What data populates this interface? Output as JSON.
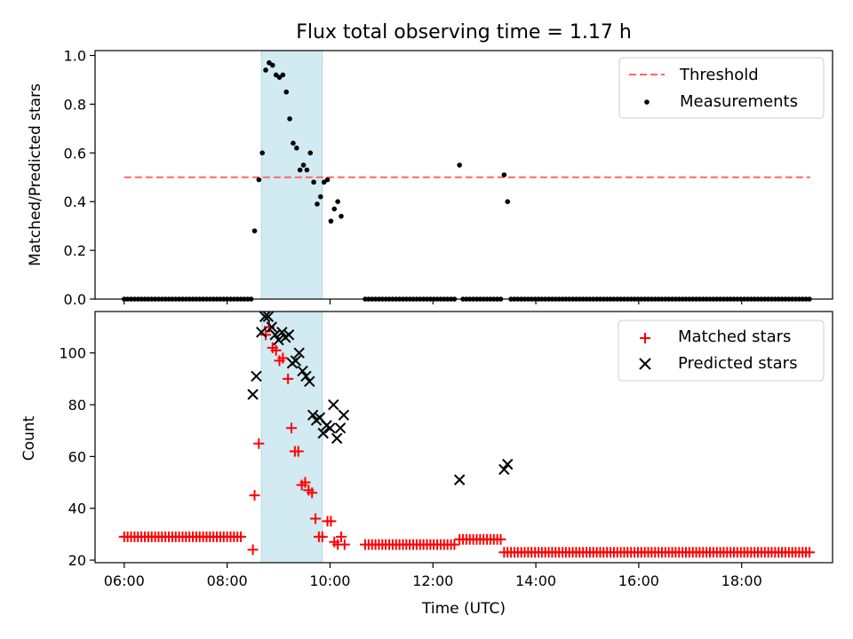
{
  "figure": {
    "title": "Flux total observing time = 1.17 h",
    "xlabel": "Time (UTC)"
  },
  "chart_data": [
    {
      "type": "scatter",
      "ylabel": "Matched/Predicted stars",
      "xlim": [
        "05:26",
        "19:46"
      ],
      "ylim": [
        0,
        1.02
      ],
      "yticks": [
        "0.0",
        "0.2",
        "0.4",
        "0.6",
        "0.8",
        "1.0"
      ],
      "xticks": [
        "06:00",
        "08:00",
        "10:00",
        "12:00",
        "14:00",
        "16:00",
        "18:00"
      ],
      "grid": false,
      "legend_position": "top-right",
      "highlight_span": [
        "08:40",
        "09:51"
      ],
      "highlight_color": "#add8e6",
      "threshold": {
        "name": "Threshold",
        "value": 0.5,
        "x_range": [
          "06:00",
          "19:20"
        ],
        "color": "#ff6666",
        "style": "dashed"
      },
      "series": [
        {
          "name": "Measurements",
          "color": "#000000",
          "marker": "dot",
          "points": [
            [
              "08:32",
              0.28
            ],
            [
              "08:37",
              0.49
            ],
            [
              "08:41",
              0.6
            ],
            [
              "08:45",
              0.94
            ],
            [
              "08:49",
              0.97
            ],
            [
              "08:53",
              0.96
            ],
            [
              "08:57",
              0.92
            ],
            [
              "09:01",
              0.91
            ],
            [
              "09:05",
              0.92
            ],
            [
              "09:09",
              0.85
            ],
            [
              "09:13",
              0.74
            ],
            [
              "09:17",
              0.64
            ],
            [
              "09:21",
              0.62
            ],
            [
              "09:25",
              0.53
            ],
            [
              "09:29",
              0.55
            ],
            [
              "09:33",
              0.53
            ],
            [
              "09:37",
              0.6
            ],
            [
              "09:41",
              0.48
            ],
            [
              "09:45",
              0.39
            ],
            [
              "09:49",
              0.42
            ],
            [
              "09:53",
              0.48
            ],
            [
              "09:57",
              0.49
            ],
            [
              "10:01",
              0.32
            ],
            [
              "10:05",
              0.37
            ],
            [
              "10:09",
              0.4
            ],
            [
              "10:13",
              0.34
            ],
            [
              "12:31",
              0.55
            ],
            [
              "13:23",
              0.51
            ],
            [
              "13:27",
              0.4
            ]
          ],
          "zero_runs": [
            {
              "start": "06:00",
              "end": "08:28",
              "step_min": 4
            },
            {
              "start": "10:41",
              "end": "12:27",
              "step_min": 4
            },
            {
              "start": "12:35",
              "end": "13:19",
              "step_min": 4
            },
            {
              "start": "13:31",
              "end": "19:19",
              "step_min": 4
            }
          ]
        }
      ]
    },
    {
      "type": "scatter",
      "ylabel": "Count",
      "xlim": [
        "05:26",
        "19:46"
      ],
      "ylim": [
        19,
        116
      ],
      "yticks": [
        "20",
        "40",
        "60",
        "80",
        "100"
      ],
      "xticks": [
        "06:00",
        "08:00",
        "10:00",
        "12:00",
        "14:00",
        "16:00",
        "18:00"
      ],
      "grid": false,
      "legend_position": "top-right",
      "highlight_span": [
        "08:40",
        "09:51"
      ],
      "highlight_color": "#add8e6",
      "series": [
        {
          "name": "Matched stars",
          "color": "#ff0000",
          "marker": "plus",
          "points": [
            [
              "08:30",
              24
            ],
            [
              "08:32",
              45
            ],
            [
              "08:37",
              65
            ],
            [
              "08:45",
              107
            ],
            [
              "08:49",
              110
            ],
            [
              "08:53",
              102
            ],
            [
              "08:57",
              101
            ],
            [
              "09:01",
              97
            ],
            [
              "09:05",
              98
            ],
            [
              "09:11",
              90
            ],
            [
              "09:15",
              71
            ],
            [
              "09:19",
              62
            ],
            [
              "09:23",
              62
            ],
            [
              "09:27",
              49
            ],
            [
              "09:31",
              50
            ],
            [
              "09:35",
              47
            ],
            [
              "09:39",
              46
            ],
            [
              "09:43",
              36
            ],
            [
              "09:47",
              29
            ],
            [
              "09:51",
              29
            ],
            [
              "09:57",
              35
            ],
            [
              "10:01",
              35
            ],
            [
              "10:05",
              27
            ],
            [
              "10:09",
              26
            ],
            [
              "10:13",
              29
            ],
            [
              "10:17",
              26
            ]
          ],
          "flat_runs": [
            {
              "start": "06:00",
              "end": "08:16",
              "step_min": 4,
              "value": 29
            },
            {
              "start": "10:41",
              "end": "12:27",
              "step_min": 4,
              "value": 26
            },
            {
              "start": "12:31",
              "end": "13:19",
              "step_min": 4,
              "value": 28
            },
            {
              "start": "13:23",
              "end": "19:19",
              "step_min": 4,
              "value": 23
            }
          ]
        },
        {
          "name": "Predicted stars",
          "color": "#000000",
          "marker": "x",
          "points": [
            [
              "08:30",
              84
            ],
            [
              "08:34",
              91
            ],
            [
              "08:40",
              108
            ],
            [
              "08:44",
              114
            ],
            [
              "08:48",
              114
            ],
            [
              "08:52",
              110
            ],
            [
              "08:56",
              107
            ],
            [
              "09:00",
              105
            ],
            [
              "09:04",
              108
            ],
            [
              "09:08",
              106
            ],
            [
              "09:12",
              107
            ],
            [
              "09:16",
              96
            ],
            [
              "09:20",
              97
            ],
            [
              "09:24",
              100
            ],
            [
              "09:28",
              93
            ],
            [
              "09:32",
              91
            ],
            [
              "09:36",
              89
            ],
            [
              "09:40",
              76
            ],
            [
              "09:44",
              74
            ],
            [
              "09:48",
              75
            ],
            [
              "09:52",
              69
            ],
            [
              "09:56",
              72
            ],
            [
              "10:00",
              71
            ],
            [
              "10:04",
              80
            ],
            [
              "10:08",
              67
            ],
            [
              "10:12",
              71
            ],
            [
              "10:16",
              76
            ],
            [
              "12:31",
              51
            ],
            [
              "13:23",
              55
            ],
            [
              "13:27",
              57
            ]
          ]
        }
      ]
    }
  ]
}
